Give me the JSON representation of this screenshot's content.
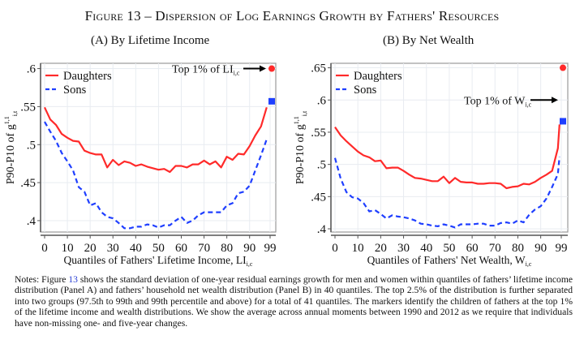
{
  "figure": {
    "label": "Figure 13",
    "title": "Dispersion of Log Earnings Growth by Fathers' Resources"
  },
  "colors": {
    "daughters": "#ff2a2a",
    "sons": "#1f3fff",
    "grid": "#e8ecf1",
    "axis": "#555555"
  },
  "chart_data": [
    {
      "type": "line",
      "panel_label": "(A)",
      "title": "By Lifetime Income",
      "xlabel": "Quantiles of Fathers' Lifetime Income, LI",
      "xlabel_sub": "i,c",
      "ylabel": "P90-P10 of g",
      "ylabel_sup": "1,1",
      "ylabel_sub": "i,t",
      "xlim": [
        0,
        99
      ],
      "ylim": [
        0.385,
        0.607
      ],
      "xticks": [
        0,
        10,
        20,
        30,
        40,
        50,
        60,
        70,
        80,
        90,
        99
      ],
      "yticks": [
        0.4,
        0.45,
        0.5,
        0.55,
        0.6
      ],
      "ytick_labels": [
        ".4",
        ".45",
        ".5",
        ".55",
        ".6"
      ],
      "grid": true,
      "legend": {
        "position": "top-left",
        "entries": [
          "Daughters",
          "Sons"
        ]
      },
      "annotation": {
        "text": "Top 1% of LI",
        "sub": "i,c",
        "arrow": "right"
      },
      "x": [
        0,
        2.5,
        5,
        7.5,
        10,
        12.5,
        15,
        17.5,
        20,
        22.5,
        25,
        27.5,
        30,
        32.5,
        35,
        37.5,
        40,
        42.5,
        45,
        47.5,
        50,
        52.5,
        55,
        57.5,
        60,
        62.5,
        65,
        67.5,
        70,
        72.5,
        75,
        77.5,
        80,
        82.5,
        85,
        87.5,
        90,
        92.5,
        95,
        97.5
      ],
      "series": [
        {
          "name": "Daughters",
          "style": "solid",
          "values": [
            0.549,
            0.533,
            0.526,
            0.514,
            0.509,
            0.505,
            0.504,
            0.492,
            0.489,
            0.487,
            0.487,
            0.47,
            0.48,
            0.473,
            0.478,
            0.476,
            0.472,
            0.474,
            0.471,
            0.469,
            0.467,
            0.468,
            0.464,
            0.472,
            0.472,
            0.47,
            0.474,
            0.474,
            0.479,
            0.474,
            0.478,
            0.47,
            0.484,
            0.48,
            0.488,
            0.487,
            0.498,
            0.512,
            0.524,
            0.549
          ],
          "top1_marker": {
            "x": 99,
            "value": 0.6,
            "shape": "circle"
          }
        },
        {
          "name": "Sons",
          "style": "dashed",
          "values": [
            0.53,
            0.517,
            0.505,
            0.489,
            0.478,
            0.466,
            0.444,
            0.438,
            0.42,
            0.423,
            0.411,
            0.405,
            0.403,
            0.397,
            0.39,
            0.39,
            0.392,
            0.392,
            0.395,
            0.394,
            0.391,
            0.394,
            0.394,
            0.4,
            0.405,
            0.397,
            0.4,
            0.407,
            0.411,
            0.411,
            0.411,
            0.411,
            0.42,
            0.423,
            0.436,
            0.438,
            0.446,
            0.466,
            0.486,
            0.507
          ],
          "top1_marker": {
            "x": 99,
            "value": 0.557,
            "shape": "square"
          }
        }
      ]
    },
    {
      "type": "line",
      "panel_label": "(B)",
      "title": "By Net Wealth",
      "xlabel": "Quantiles of Fathers' Net Wealth, W",
      "xlabel_sub": "i,c",
      "ylabel": "P90-P10 of g",
      "ylabel_sup": "1,1",
      "ylabel_sub": "i,t",
      "xlim": [
        0,
        99
      ],
      "ylim": [
        0.395,
        0.657
      ],
      "xticks": [
        0,
        10,
        20,
        30,
        40,
        50,
        60,
        70,
        80,
        90,
        99
      ],
      "yticks": [
        0.4,
        0.45,
        0.5,
        0.55,
        0.6,
        0.65
      ],
      "ytick_labels": [
        ".4",
        ".45",
        ".5",
        ".55",
        ".6",
        ".65"
      ],
      "grid": true,
      "legend": {
        "position": "top-left",
        "entries": [
          "Daughters",
          "Sons"
        ]
      },
      "annotation": {
        "text": "Top 1% of W",
        "sub": "i,c",
        "arrow": "right"
      },
      "x": [
        0,
        2.5,
        5,
        7.5,
        10,
        12.5,
        15,
        17.5,
        20,
        22.5,
        25,
        27.5,
        30,
        32.5,
        35,
        37.5,
        40,
        42.5,
        45,
        47.5,
        50,
        52.5,
        55,
        57.5,
        60,
        62.5,
        65,
        67.5,
        70,
        72.5,
        75,
        77.5,
        80,
        82.5,
        85,
        87.5,
        90,
        92.5,
        95,
        97.5
      ],
      "series": [
        {
          "name": "Daughters",
          "style": "solid",
          "values": [
            0.558,
            0.545,
            0.536,
            0.528,
            0.52,
            0.514,
            0.511,
            0.505,
            0.506,
            0.494,
            0.495,
            0.495,
            0.49,
            0.484,
            0.479,
            0.478,
            0.476,
            0.474,
            0.474,
            0.481,
            0.471,
            0.479,
            0.473,
            0.472,
            0.472,
            0.47,
            0.47,
            0.471,
            0.471,
            0.47,
            0.463,
            0.465,
            0.466,
            0.47,
            0.469,
            0.473,
            0.479,
            0.484,
            0.49,
            0.525
          ],
          "top1_marker": {
            "x": 99,
            "value": 0.65,
            "shape": "circle"
          }
        },
        {
          "name": "Sons",
          "style": "dashed",
          "values": [
            0.51,
            0.478,
            0.457,
            0.449,
            0.447,
            0.44,
            0.427,
            0.429,
            0.423,
            0.416,
            0.421,
            0.419,
            0.418,
            0.416,
            0.413,
            0.408,
            0.407,
            0.405,
            0.404,
            0.407,
            0.405,
            0.402,
            0.407,
            0.407,
            0.407,
            0.408,
            0.408,
            0.405,
            0.405,
            0.409,
            0.41,
            0.408,
            0.413,
            0.41,
            0.422,
            0.43,
            0.435,
            0.447,
            0.465,
            0.485
          ],
          "top1_marker": {
            "x": 99,
            "value": 0.567,
            "shape": "square"
          }
        }
      ],
      "end_values": {
        "Daughters": 0.562,
        "Sons": 0.512
      }
    }
  ],
  "notes": {
    "prefix": "Notes: Figure ",
    "ref": "13",
    "body": " shows the standard deviation of one-year residual earnings growth for men and women within quantiles of fathers’ lifetime income distribution (Panel A) and fathers’ household net wealth distribution (Panel B) in 40 quantiles. The top 2.5% of the distribution is further separated into two groups (97.5th to 99th and 99th percentile and above) for a total of 41 quantiles. The markers identify the children of fathers at the top 1% of the lifetime income and wealth distributions. We show the average across annual moments between 1990 and 2012 as we require that individuals have non-missing one- and five-year changes."
  }
}
